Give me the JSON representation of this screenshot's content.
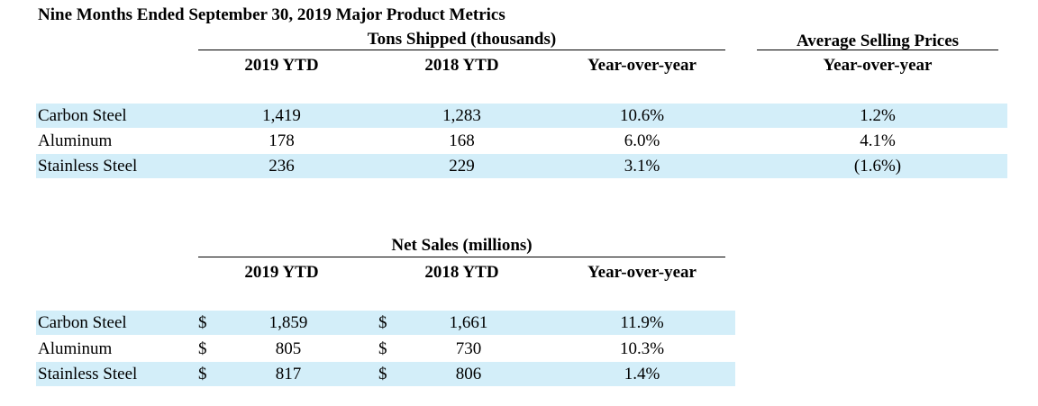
{
  "title": "Nine Months Ended September 30, 2019 Major Product Metrics",
  "tons": {
    "group_header": "Tons Shipped (thousands)",
    "asp_header": "Average Selling Prices",
    "columns": [
      "2019 YTD",
      "2018 YTD",
      "Year-over-year",
      "Year-over-year"
    ],
    "rows": [
      {
        "label": "Carbon Steel",
        "ytd2019": "1,419",
        "ytd2018": "1,283",
        "yoy": "10.6%",
        "asp_yoy": "1.2%"
      },
      {
        "label": "Aluminum",
        "ytd2019": "178",
        "ytd2018": "168",
        "yoy": "6.0%",
        "asp_yoy": "4.1%"
      },
      {
        "label": "Stainless Steel",
        "ytd2019": "236",
        "ytd2018": "229",
        "yoy": "3.1%",
        "asp_yoy": "(1.6%)"
      }
    ]
  },
  "sales": {
    "group_header": "Net Sales (millions)",
    "columns": [
      "2019 YTD",
      "2018 YTD",
      "Year-over-year"
    ],
    "currency": "$",
    "rows": [
      {
        "label": "Carbon Steel",
        "ytd2019": "1,859",
        "ytd2018": "1,661",
        "yoy": "11.9%"
      },
      {
        "label": "Aluminum",
        "ytd2019": "805",
        "ytd2018": "730",
        "yoy": "10.3%"
      },
      {
        "label": "Stainless Steel",
        "ytd2019": "817",
        "ytd2018": "806",
        "yoy": "1.4%"
      }
    ]
  }
}
